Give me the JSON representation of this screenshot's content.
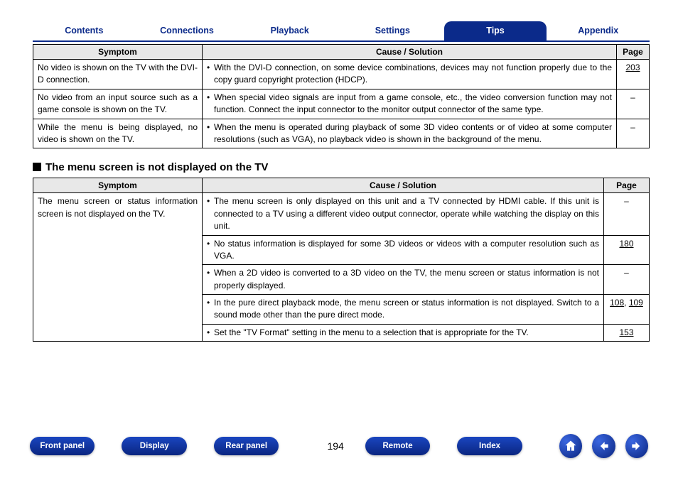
{
  "nav_tabs": {
    "items": [
      "Contents",
      "Connections",
      "Playback",
      "Settings",
      "Tips",
      "Appendix"
    ],
    "active_index": 4,
    "active_bg": "#0b2a8a",
    "active_fg": "#ffffff",
    "inactive_fg": "#0b2a8a"
  },
  "table1": {
    "headers": {
      "symptom": "Symptom",
      "solution": "Cause / Solution",
      "page": "Page"
    },
    "col_widths": {
      "symptom": "238px",
      "solution": "auto",
      "page": "46px"
    },
    "rows": [
      {
        "symptom": "No video is shown on the TV with the DVI-D connection.",
        "solutions": [
          {
            "text": "With the DVI-D connection, on some device combinations, devices may not function properly due to the copy guard copyright protection (HDCP).",
            "page": "203",
            "page_link": true
          }
        ]
      },
      {
        "symptom": "No video from an input source such as a game console is shown on the TV.",
        "solutions": [
          {
            "text": "When special video signals are input from a game console, etc., the video conversion function may not function. Connect the input connector to the monitor output connector of the same type.",
            "page": "–"
          }
        ]
      },
      {
        "symptom": "While the menu is being displayed, no video is shown on the TV.",
        "solutions": [
          {
            "text": "When the menu is operated during playback of some 3D video contents or of video at some computer resolutions (such as VGA), no playback video is shown in the background of the menu.",
            "page": "–"
          }
        ]
      }
    ]
  },
  "section_heading": "The menu screen is not displayed on the TV",
  "table2": {
    "headers": {
      "symptom": "Symptom",
      "solution": "Cause / Solution",
      "page": "Page"
    },
    "col_widths": {
      "symptom": "238px",
      "solution": "auto",
      "page": "64px"
    },
    "rows": [
      {
        "symptom": "The menu screen or status information screen is not displayed on the TV.",
        "solutions": [
          {
            "text": "The menu screen is only displayed on this unit and a TV connected by HDMI cable. If this unit is connected to a TV using a different video output connector, operate while watching the display on this unit.",
            "page": "–"
          },
          {
            "text": "No status information is displayed for some 3D videos or videos with a computer resolution such as VGA.",
            "page": "180",
            "page_link": true
          },
          {
            "text": "When a 2D video is converted to a 3D video on the TV, the menu screen or status information is not properly displayed.",
            "page": "–"
          },
          {
            "text": "In the pure direct playback mode, the menu screen or status information is not displayed. Switch to a sound mode other than the pure direct mode.",
            "page": "108, 109",
            "page_link": true
          },
          {
            "text": "Set the \"TV Format\" setting in the menu to a selection that is appropriate for the TV.",
            "page": "153",
            "page_link": true
          }
        ]
      }
    ]
  },
  "bottom": {
    "pills": [
      "Front panel",
      "Display",
      "Rear panel"
    ],
    "page_number": "194",
    "pills2": [
      "Remote",
      "Index"
    ],
    "icons": [
      "home",
      "prev",
      "next"
    ]
  },
  "colors": {
    "brand": "#0b2a8a",
    "header_bg": "#e8e8e8"
  }
}
